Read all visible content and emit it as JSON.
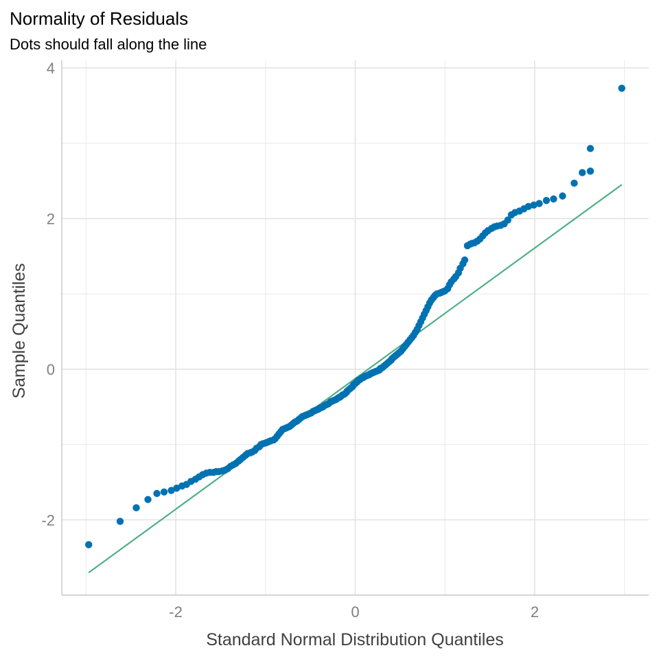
{
  "chart_data": {
    "type": "scatter",
    "title": "Normality of Residuals",
    "subtitle": "Dots should fall along the line",
    "xlabel": "Standard Normal Distribution Quantiles",
    "ylabel": "Sample Quantiles",
    "xlim": [
      -3.27,
      3.27
    ],
    "ylim": [
      -3.0,
      4.1
    ],
    "x_ticks": [
      -2,
      0,
      2
    ],
    "x_tick_labels": [
      "-2",
      "0",
      "2"
    ],
    "x_minor_ticks": [
      -3,
      -1,
      1,
      3
    ],
    "y_ticks": [
      -2,
      0,
      2,
      4
    ],
    "y_tick_labels": [
      "-2",
      "0",
      "2",
      "4"
    ],
    "y_minor_ticks": [
      -3,
      -1,
      1,
      3
    ],
    "grid": true,
    "point_color": "#0072B2",
    "line_color": "#4DAF87",
    "reference_line": {
      "x": [
        -2.97,
        2.97
      ],
      "y": [
        -2.7,
        2.45
      ]
    },
    "points": [
      [
        -2.97,
        -2.33
      ],
      [
        -2.62,
        -2.02
      ],
      [
        -2.44,
        -1.84
      ],
      [
        -2.31,
        -1.73
      ],
      [
        -2.21,
        -1.65
      ],
      [
        -2.13,
        -1.63
      ],
      [
        -2.05,
        -1.61
      ],
      [
        -1.99,
        -1.58
      ],
      [
        -1.93,
        -1.55
      ],
      [
        -1.88,
        -1.53
      ],
      [
        -1.83,
        -1.49
      ],
      [
        -1.78,
        -1.46
      ],
      [
        -1.74,
        -1.43
      ],
      [
        -1.7,
        -1.4
      ],
      [
        -1.66,
        -1.38
      ],
      [
        -1.62,
        -1.37
      ],
      [
        -1.58,
        -1.37
      ],
      [
        -1.55,
        -1.36
      ],
      [
        -1.52,
        -1.36
      ],
      [
        -1.48,
        -1.35
      ],
      [
        -1.45,
        -1.34
      ],
      [
        -1.42,
        -1.32
      ],
      [
        -1.39,
        -1.29
      ],
      [
        -1.36,
        -1.27
      ],
      [
        -1.33,
        -1.25
      ],
      [
        -1.3,
        -1.22
      ],
      [
        -1.28,
        -1.2
      ],
      [
        -1.25,
        -1.17
      ],
      [
        -1.22,
        -1.14
      ],
      [
        -1.2,
        -1.12
      ],
      [
        -1.17,
        -1.11
      ],
      [
        -1.15,
        -1.1
      ],
      [
        -1.12,
        -1.08
      ],
      [
        -1.1,
        -1.05
      ],
      [
        -1.07,
        -1.03
      ],
      [
        -1.05,
        -1.0
      ],
      [
        -1.03,
        -0.99
      ],
      [
        -1.0,
        -0.98
      ],
      [
        -0.98,
        -0.97
      ],
      [
        -0.96,
        -0.96
      ],
      [
        -0.94,
        -0.95
      ],
      [
        -0.91,
        -0.94
      ],
      [
        -0.89,
        -0.92
      ],
      [
        -0.87,
        -0.89
      ],
      [
        -0.85,
        -0.86
      ],
      [
        -0.83,
        -0.83
      ],
      [
        -0.81,
        -0.8
      ],
      [
        -0.79,
        -0.79
      ],
      [
        -0.77,
        -0.78
      ],
      [
        -0.75,
        -0.77
      ],
      [
        -0.73,
        -0.76
      ],
      [
        -0.71,
        -0.74
      ],
      [
        -0.69,
        -0.72
      ],
      [
        -0.67,
        -0.7
      ],
      [
        -0.65,
        -0.69
      ],
      [
        -0.63,
        -0.67
      ],
      [
        -0.61,
        -0.65
      ],
      [
        -0.59,
        -0.63
      ],
      [
        -0.57,
        -0.62
      ],
      [
        -0.55,
        -0.61
      ],
      [
        -0.53,
        -0.6
      ],
      [
        -0.51,
        -0.59
      ],
      [
        -0.49,
        -0.58
      ],
      [
        -0.47,
        -0.56
      ],
      [
        -0.45,
        -0.55
      ],
      [
        -0.43,
        -0.54
      ],
      [
        -0.41,
        -0.53
      ],
      [
        -0.4,
        -0.52
      ],
      [
        -0.38,
        -0.51
      ],
      [
        -0.36,
        -0.5
      ],
      [
        -0.34,
        -0.48
      ],
      [
        -0.32,
        -0.47
      ],
      [
        -0.3,
        -0.46
      ],
      [
        -0.28,
        -0.44
      ],
      [
        -0.27,
        -0.43
      ],
      [
        -0.25,
        -0.42
      ],
      [
        -0.23,
        -0.41
      ],
      [
        -0.21,
        -0.4
      ],
      [
        -0.19,
        -0.38
      ],
      [
        -0.17,
        -0.37
      ],
      [
        -0.16,
        -0.36
      ],
      [
        -0.14,
        -0.34
      ],
      [
        -0.12,
        -0.33
      ],
      [
        -0.1,
        -0.31
      ],
      [
        -0.09,
        -0.29
      ],
      [
        -0.07,
        -0.27
      ],
      [
        -0.05,
        -0.25
      ],
      [
        -0.03,
        -0.23
      ],
      [
        -0.02,
        -0.21
      ],
      [
        0.0,
        -0.19
      ],
      [
        0.02,
        -0.17
      ],
      [
        0.03,
        -0.15
      ],
      [
        0.05,
        -0.14
      ],
      [
        0.07,
        -0.12
      ],
      [
        0.09,
        -0.11
      ],
      [
        0.1,
        -0.1
      ],
      [
        0.12,
        -0.09
      ],
      [
        0.14,
        -0.08
      ],
      [
        0.16,
        -0.07
      ],
      [
        0.17,
        -0.06
      ],
      [
        0.19,
        -0.05
      ],
      [
        0.21,
        -0.04
      ],
      [
        0.23,
        -0.03
      ],
      [
        0.25,
        -0.02
      ],
      [
        0.27,
        -0.01
      ],
      [
        0.28,
        0.01
      ],
      [
        0.3,
        0.02
      ],
      [
        0.32,
        0.04
      ],
      [
        0.34,
        0.06
      ],
      [
        0.36,
        0.08
      ],
      [
        0.38,
        0.1
      ],
      [
        0.4,
        0.12
      ],
      [
        0.41,
        0.14
      ],
      [
        0.43,
        0.16
      ],
      [
        0.45,
        0.18
      ],
      [
        0.47,
        0.2
      ],
      [
        0.49,
        0.22
      ],
      [
        0.51,
        0.24
      ],
      [
        0.53,
        0.27
      ],
      [
        0.55,
        0.3
      ],
      [
        0.57,
        0.33
      ],
      [
        0.59,
        0.36
      ],
      [
        0.61,
        0.39
      ],
      [
        0.63,
        0.42
      ],
      [
        0.65,
        0.45
      ],
      [
        0.67,
        0.49
      ],
      [
        0.69,
        0.53
      ],
      [
        0.71,
        0.58
      ],
      [
        0.73,
        0.63
      ],
      [
        0.75,
        0.68
      ],
      [
        0.77,
        0.73
      ],
      [
        0.79,
        0.78
      ],
      [
        0.81,
        0.83
      ],
      [
        0.83,
        0.88
      ],
      [
        0.85,
        0.92
      ],
      [
        0.87,
        0.95
      ],
      [
        0.89,
        0.98
      ],
      [
        0.91,
        1.0
      ],
      [
        0.94,
        1.01
      ],
      [
        0.96,
        1.02
      ],
      [
        0.98,
        1.03
      ],
      [
        1.0,
        1.04
      ],
      [
        1.03,
        1.07
      ],
      [
        1.05,
        1.12
      ],
      [
        1.07,
        1.16
      ],
      [
        1.1,
        1.2
      ],
      [
        1.12,
        1.23
      ],
      [
        1.15,
        1.28
      ],
      [
        1.17,
        1.34
      ],
      [
        1.2,
        1.4
      ],
      [
        1.22,
        1.45
      ],
      [
        1.25,
        1.64
      ],
      [
        1.28,
        1.66
      ],
      [
        1.3,
        1.67
      ],
      [
        1.33,
        1.68
      ],
      [
        1.36,
        1.7
      ],
      [
        1.39,
        1.73
      ],
      [
        1.42,
        1.77
      ],
      [
        1.45,
        1.81
      ],
      [
        1.48,
        1.84
      ],
      [
        1.52,
        1.87
      ],
      [
        1.55,
        1.89
      ],
      [
        1.58,
        1.9
      ],
      [
        1.62,
        1.91
      ],
      [
        1.66,
        1.93
      ],
      [
        1.7,
        1.98
      ],
      [
        1.74,
        2.05
      ],
      [
        1.78,
        2.08
      ],
      [
        1.83,
        2.1
      ],
      [
        1.88,
        2.13
      ],
      [
        1.93,
        2.16
      ],
      [
        1.99,
        2.18
      ],
      [
        2.05,
        2.2
      ],
      [
        2.13,
        2.24
      ],
      [
        2.21,
        2.26
      ],
      [
        2.31,
        2.3
      ],
      [
        2.44,
        2.47
      ],
      [
        2.53,
        2.61
      ],
      [
        2.62,
        2.63
      ],
      [
        2.62,
        2.63
      ],
      [
        2.62,
        2.93
      ],
      [
        2.97,
        3.73
      ]
    ]
  }
}
